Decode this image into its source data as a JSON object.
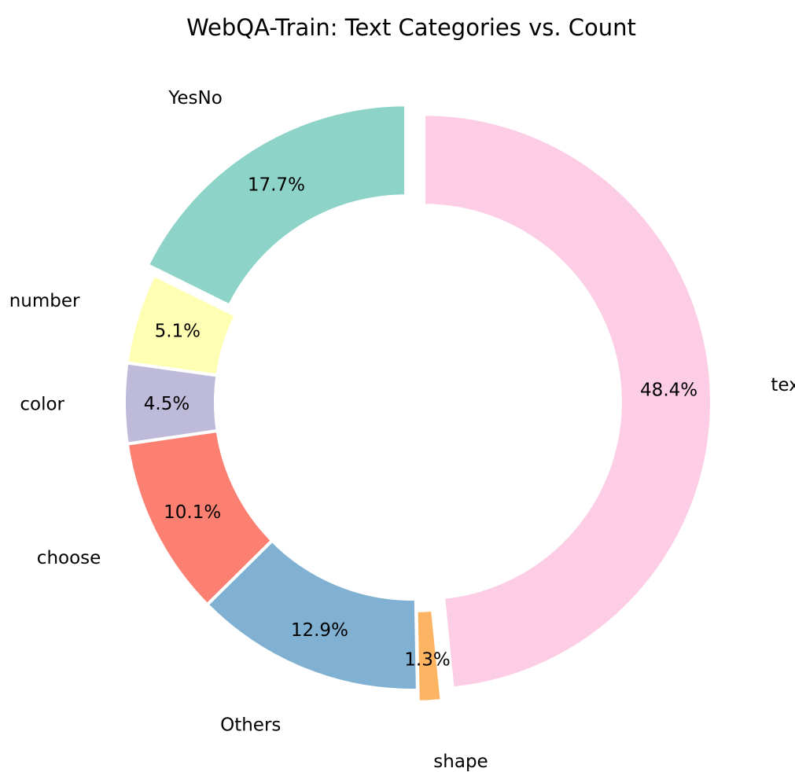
{
  "chart_data": {
    "type": "pie",
    "variant": "donut",
    "title": "WebQA-Train: Text Categories vs. Count",
    "categories": [
      "YesNo",
      "number",
      "color",
      "choose",
      "Others",
      "shape",
      "text"
    ],
    "values": [
      17.7,
      5.1,
      4.5,
      10.1,
      12.9,
      1.3,
      48.4
    ],
    "pct_labels": [
      "17.7%",
      "5.1%",
      "4.5%",
      "10.1%",
      "12.9%",
      "1.3%",
      "48.4%"
    ],
    "unit": "%",
    "colors": [
      "#8dd3c7",
      "#ffffb3",
      "#bebada",
      "#fb8072",
      "#80b1d3",
      "#fdb462",
      "#fccde5"
    ],
    "exploded": [
      "YesNo",
      "shape",
      "text"
    ],
    "direction": "counterclockwise",
    "legend": "none"
  }
}
